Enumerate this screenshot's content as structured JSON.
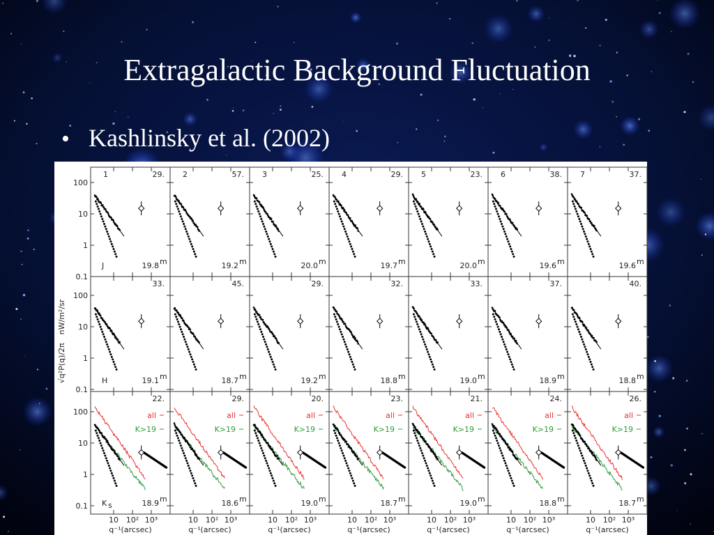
{
  "title": "Extragalactic Background Fluctuation",
  "bullets": [
    "Kashlinsky et al. (2002)"
  ],
  "figure": {
    "y_label": "√q²P(q)/2π",
    "y_unit": "nW/m²/sr",
    "x_label": "q⁻¹(arcsec)",
    "y_ticks": [
      "100",
      "10",
      "1",
      "0.1"
    ],
    "x_ticks": [
      "10",
      "10²",
      "10³"
    ],
    "magnitude_unit": "m",
    "legend": [
      "all",
      "K>19"
    ],
    "rows": [
      {
        "band": "J",
        "band_sub": null,
        "panels": [
          {
            "number": "1",
            "value": "29.",
            "mag": "19.8"
          },
          {
            "number": "2",
            "value": "57.",
            "mag": "19.2"
          },
          {
            "number": "3",
            "value": "25.",
            "mag": "20.0"
          },
          {
            "number": "4",
            "value": "29.",
            "mag": "19.7"
          },
          {
            "number": "5",
            "value": "23.",
            "mag": "20.0"
          },
          {
            "number": "6",
            "value": "38.",
            "mag": "19.6"
          },
          {
            "number": "7",
            "value": "37.",
            "mag": "19.6"
          }
        ]
      },
      {
        "band": "H",
        "band_sub": null,
        "panels": [
          {
            "number": null,
            "value": "33.",
            "mag": "19.1"
          },
          {
            "number": null,
            "value": "45.",
            "mag": "18.7"
          },
          {
            "number": null,
            "value": "29.",
            "mag": "19.2"
          },
          {
            "number": null,
            "value": "32.",
            "mag": "18.8"
          },
          {
            "number": null,
            "value": "33.",
            "mag": "19.0"
          },
          {
            "number": null,
            "value": "37.",
            "mag": "18.9"
          },
          {
            "number": null,
            "value": "40.",
            "mag": "18.8"
          }
        ]
      },
      {
        "band": "K",
        "band_sub": "s",
        "panels": [
          {
            "number": null,
            "value": "22.",
            "mag": "18.9"
          },
          {
            "number": null,
            "value": "29.",
            "mag": "18.6"
          },
          {
            "number": null,
            "value": "20.",
            "mag": "19.0"
          },
          {
            "number": null,
            "value": "23.",
            "mag": "18.7"
          },
          {
            "number": null,
            "value": "21.",
            "mag": "19.0"
          },
          {
            "number": null,
            "value": "24.",
            "mag": "18.8"
          },
          {
            "number": null,
            "value": "26.",
            "mag": "18.7"
          }
        ]
      }
    ]
  }
}
